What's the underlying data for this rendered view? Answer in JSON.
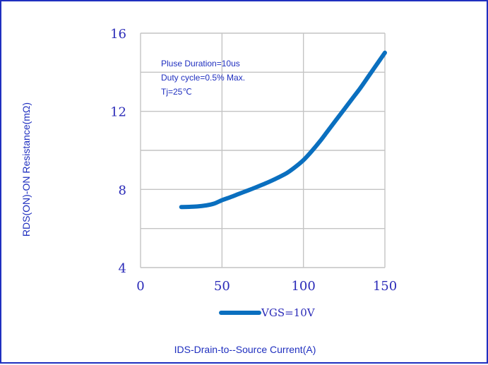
{
  "chart_data": {
    "type": "line",
    "title": "",
    "xlabel": "IDS-Drain-to--Source Current(A)",
    "ylabel": "RDS(ON)-ON Resistance(mΩ)",
    "xlim": [
      0,
      150
    ],
    "ylim": [
      4,
      16
    ],
    "x_ticks": [
      0,
      50,
      100,
      150
    ],
    "y_ticks": [
      4,
      8,
      12,
      16
    ],
    "grid": true,
    "legend_position": "bottom-center",
    "annotations": [
      "Pluse Duration=10us",
      "Duty cycle=0.5% Max.",
      "Tj=25℃"
    ],
    "series": [
      {
        "name": "VGS=10V",
        "color": "#0a6fbf",
        "x": [
          25,
          30,
          35,
          40,
          45,
          50,
          55,
          60,
          65,
          70,
          75,
          80,
          85,
          90,
          95,
          100,
          105,
          110,
          115,
          120,
          125,
          130,
          135,
          140,
          145,
          150
        ],
        "y": [
          7.1,
          7.11,
          7.13,
          7.18,
          7.27,
          7.45,
          7.6,
          7.76,
          7.92,
          8.08,
          8.25,
          8.43,
          8.63,
          8.85,
          9.15,
          9.5,
          9.95,
          10.45,
          11.0,
          11.55,
          12.1,
          12.65,
          13.2,
          13.8,
          14.4,
          15.0
        ]
      }
    ]
  }
}
